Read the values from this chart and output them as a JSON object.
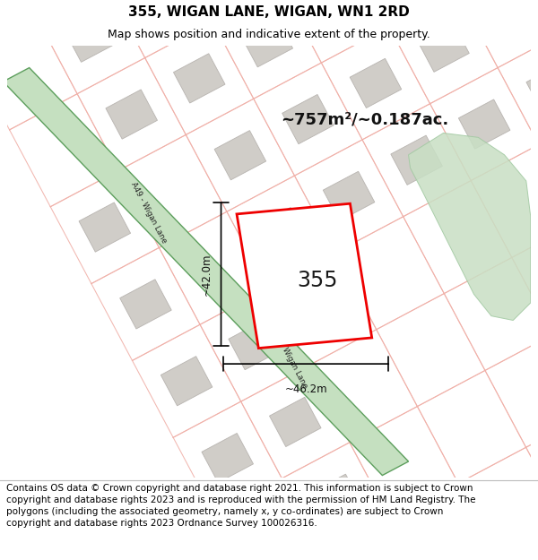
{
  "title": "355, WIGAN LANE, WIGAN, WN1 2RD",
  "subtitle": "Map shows position and indicative extent of the property.",
  "area_label": "~757m²/~0.187ac.",
  "plot_number": "355",
  "dim_vertical": "~42.0m",
  "dim_horizontal": "~46.2m",
  "road_label": "A49 - Wigan Lane",
  "footer": "Contains OS data © Crown copyright and database right 2021. This information is subject to Crown copyright and database rights 2023 and is reproduced with the permission of HM Land Registry. The polygons (including the associated geometry, namely x, y co-ordinates) are subject to Crown copyright and database rights 2023 Ordnance Survey 100026316.",
  "map_bg": "#f7f5f2",
  "road_green_fill": "#c5e0c0",
  "road_green_edge": "#5c9e5c",
  "road_pink_color": "#f0b0a8",
  "building_gray": "#d0cdc8",
  "building_outline": "#b8b4b0",
  "plot_color": "#ee0000",
  "plot_fill": "#ffffff",
  "green_area_color": "#c8dfc4",
  "green_area_edge": "#a0c8a0",
  "header_bg": "#ffffff",
  "footer_bg": "#ffffff",
  "title_fontsize": 11,
  "subtitle_fontsize": 9,
  "footer_fontsize": 7.5
}
